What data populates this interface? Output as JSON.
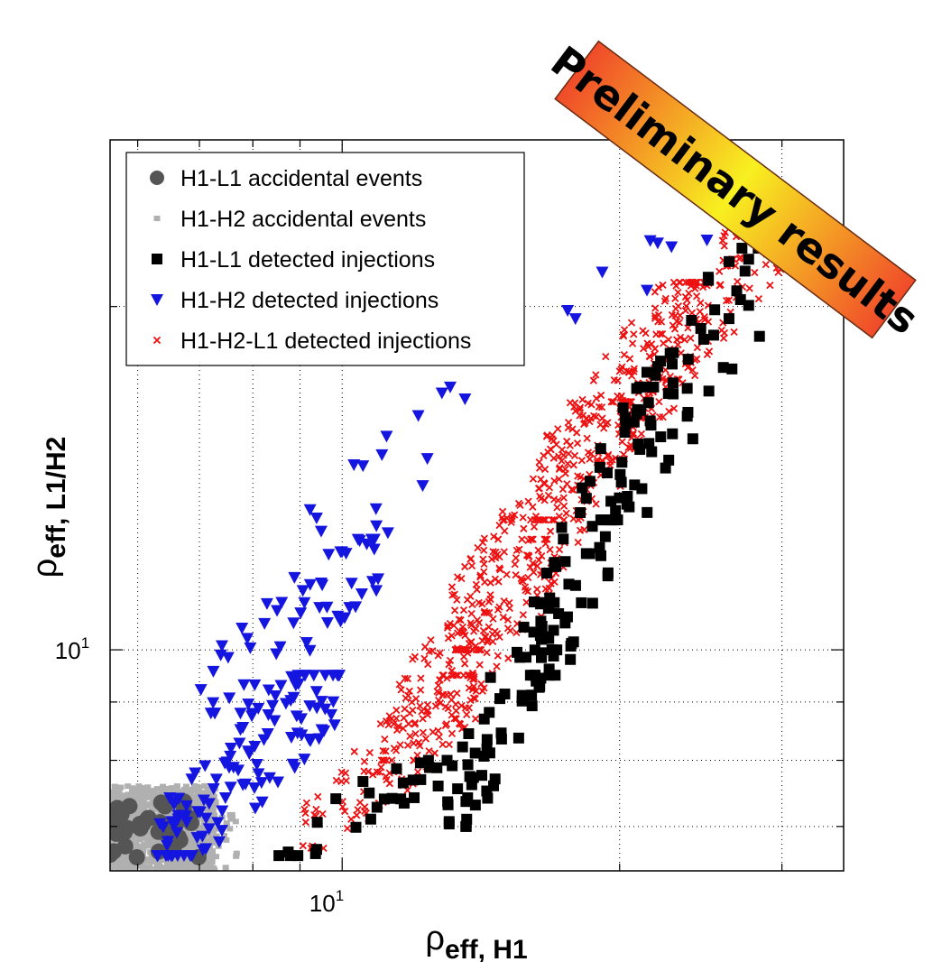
{
  "chart_data": {
    "type": "scatter",
    "xscale": "log",
    "yscale": "log",
    "xlim": [
      5.6,
      35
    ],
    "ylim": [
      6.4,
      28
    ],
    "grid": true,
    "grid_style": "dotted",
    "x_tick_label": "10",
    "x_tick_label_sup": "1",
    "y_tick_label": "10",
    "y_tick_label_sup": "1",
    "xlabel_main": "ρ",
    "xlabel_sub": "eff, H1",
    "ylabel_main": "ρ",
    "ylabel_sub": "eff, L1/H2",
    "legend_position": "top-left",
    "banner": {
      "text": "Preliminary results",
      "colors": [
        "#f04a2a",
        "#f8f020",
        "#f04a2a"
      ]
    },
    "series": [
      {
        "name": "H1-L1 accidental events",
        "marker": "circle",
        "color": "#555555",
        "clusters": [
          {
            "x": [
              5.6,
              7.0
            ],
            "y": [
              6.5,
              7.4
            ],
            "n": 40
          }
        ]
      },
      {
        "name": "H1-H2 accidental events",
        "marker": "square-small",
        "color": "#b0b0b0",
        "clusters": [
          {
            "x": [
              5.6,
              7.3
            ],
            "y": [
              6.4,
              7.6
            ],
            "n": 900
          },
          {
            "x": [
              6.5,
              7.7
            ],
            "y": [
              6.4,
              7.3
            ],
            "n": 60
          }
        ]
      },
      {
        "name": "H1-L1 detected injections",
        "marker": "square",
        "color": "#000000",
        "clusters": [
          {
            "x": [
              8.5,
              13
            ],
            "y": [
              6.6,
              8.0
            ],
            "n": 28
          },
          {
            "x": [
              13,
              17
            ],
            "y": [
              7.0,
              11.0
            ],
            "n": 60
          },
          {
            "x": [
              16,
              22
            ],
            "y": [
              9.5,
              17.0
            ],
            "n": 70
          },
          {
            "x": [
              19,
              29
            ],
            "y": [
              13,
              22.5
            ],
            "n": 60
          }
        ]
      },
      {
        "name": "H1-H2 detected injections",
        "marker": "triangle-down",
        "color": "#1515e0",
        "clusters": [
          {
            "x": [
              6.3,
              10
            ],
            "y": [
              6.6,
              9.5
            ],
            "n": 120
          },
          {
            "x": [
              7.0,
              11
            ],
            "y": [
              8.8,
              12.5
            ],
            "n": 55
          },
          {
            "x": [
              8.5,
              14
            ],
            "y": [
              11,
              17
            ],
            "n": 20
          },
          {
            "x": [
              17,
              27
            ],
            "y": [
              19,
              24
            ],
            "n": 8
          }
        ]
      },
      {
        "name": "H1-H2-L1 detected injections",
        "marker": "x",
        "color": "#ee1111",
        "clusters": [
          {
            "x": [
              9,
              14
            ],
            "y": [
              6.7,
              9.5
            ],
            "n": 130
          },
          {
            "x": [
              11,
              17
            ],
            "y": [
              8,
              12.5
            ],
            "n": 160
          },
          {
            "x": [
              13,
              21
            ],
            "y": [
              10,
              16.5
            ],
            "n": 200
          },
          {
            "x": [
              16,
              25
            ],
            "y": [
              13,
              21
            ],
            "n": 200
          },
          {
            "x": [
              20,
              31
            ],
            "y": [
              16,
              25
            ],
            "n": 170
          }
        ]
      }
    ]
  }
}
